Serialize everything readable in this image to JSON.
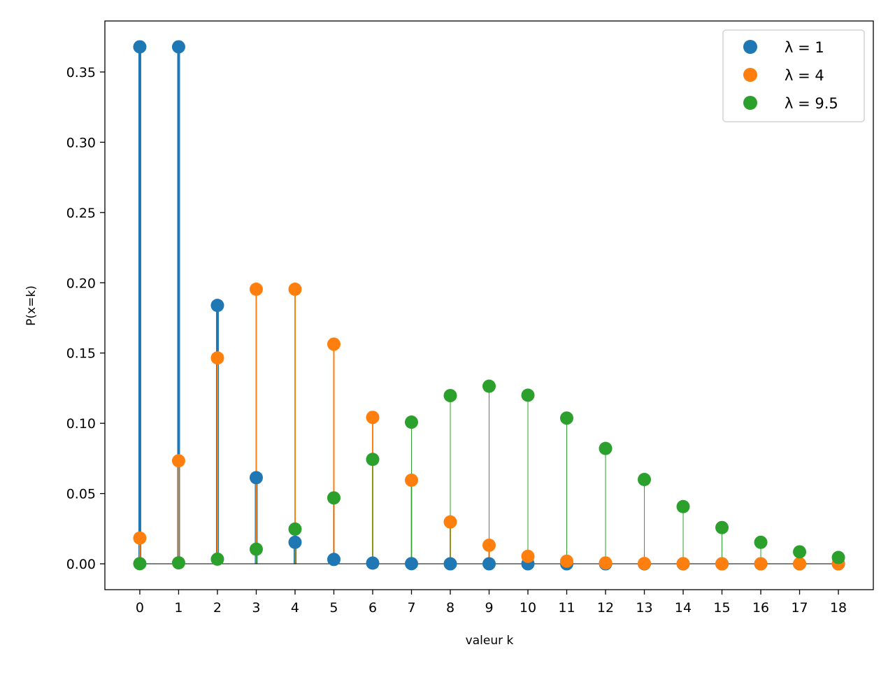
{
  "chart_data": {
    "type": "stem",
    "title": "",
    "xlabel": "valeur k",
    "ylabel": "P(x=k)",
    "xlim": [
      -0.9,
      18.9
    ],
    "ylim": [
      -0.0184,
      0.3863
    ],
    "grid": false,
    "legend_position": "top-right",
    "x_ticks": [
      0,
      1,
      2,
      3,
      4,
      5,
      6,
      7,
      8,
      9,
      10,
      11,
      12,
      13,
      14,
      15,
      16,
      17,
      18
    ],
    "x_tick_labels": [
      "0",
      "1",
      "2",
      "3",
      "4",
      "5",
      "6",
      "7",
      "8",
      "9",
      "10",
      "11",
      "12",
      "13",
      "14",
      "15",
      "16",
      "17",
      "18"
    ],
    "y_ticks": [
      0.0,
      0.05,
      0.1,
      0.15,
      0.2,
      0.25,
      0.3,
      0.35
    ],
    "y_tick_labels": [
      "0.00",
      "0.05",
      "0.10",
      "0.15",
      "0.20",
      "0.25",
      "0.30",
      "0.35"
    ],
    "x": [
      0,
      1,
      2,
      3,
      4,
      5,
      6,
      7,
      8,
      9,
      10,
      11,
      12,
      13,
      14,
      15,
      16,
      17,
      18
    ],
    "series": [
      {
        "name": "λ = 1",
        "color": "#1f77b4",
        "values": [
          0.3679,
          0.3679,
          0.1839,
          0.0613,
          0.0153,
          0.0031,
          0.0005,
          0.0001,
          0.0,
          0.0,
          0.0,
          0.0,
          0.0,
          0.0,
          0.0,
          0.0,
          0.0,
          0.0,
          0.0
        ]
      },
      {
        "name": "λ = 4",
        "color": "#ff7f0e",
        "values": [
          0.0183,
          0.0733,
          0.1465,
          0.1954,
          0.1954,
          0.1563,
          0.1042,
          0.0595,
          0.0298,
          0.0132,
          0.0053,
          0.0019,
          0.0006,
          0.0002,
          0.0001,
          0.0,
          0.0,
          0.0,
          0.0
        ]
      },
      {
        "name": "λ = 9.5",
        "color": "#2ca02c",
        "values": [
          0.0001,
          0.0007,
          0.0033,
          0.0104,
          0.0247,
          0.0469,
          0.0743,
          0.1008,
          0.1197,
          0.1264,
          0.12,
          0.1037,
          0.0821,
          0.06,
          0.0407,
          0.0258,
          0.0153,
          0.0085,
          0.0045
        ]
      }
    ]
  }
}
